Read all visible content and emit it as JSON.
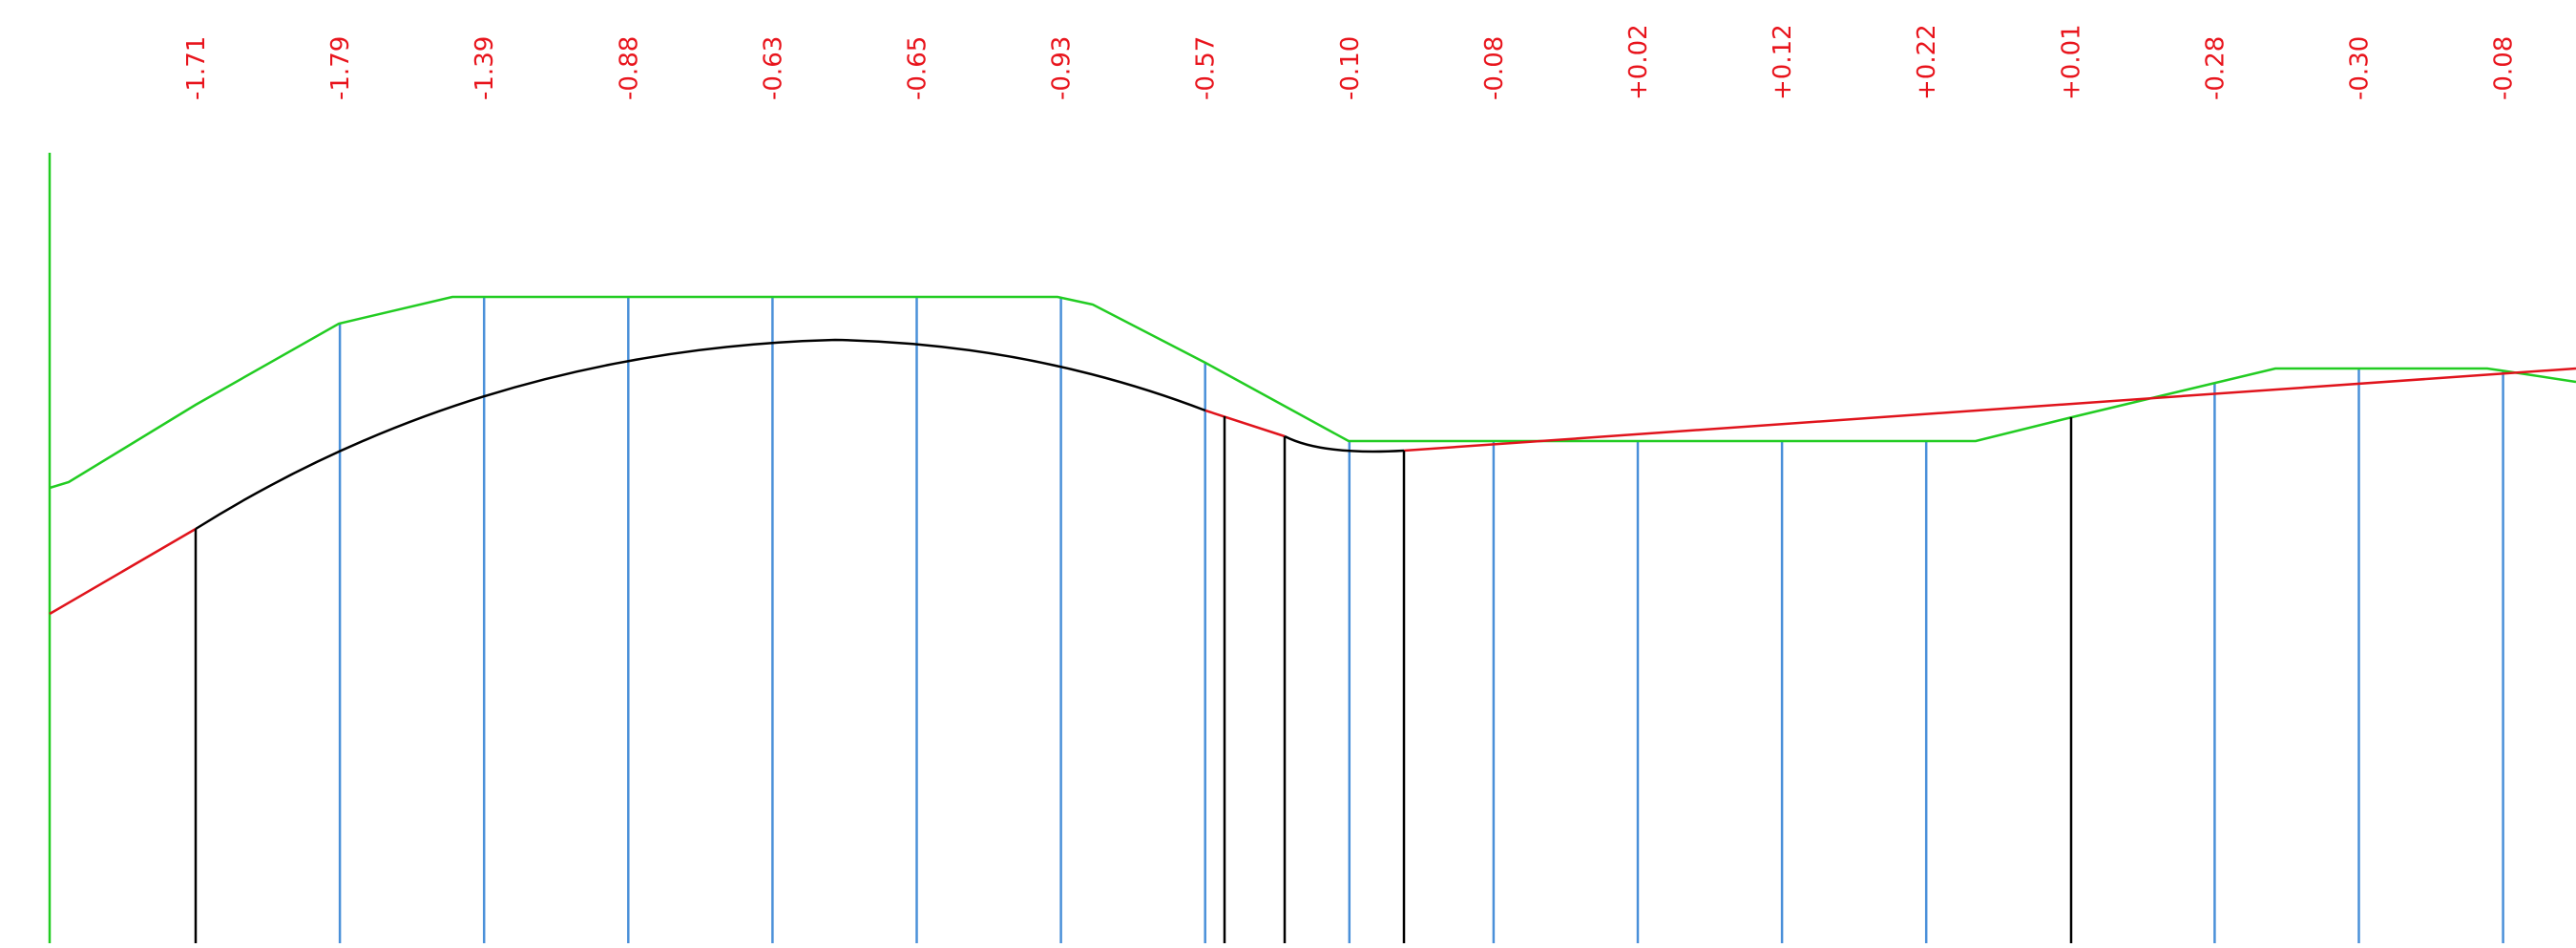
{
  "profile": {
    "stations": [
      {
        "label": "-1.71",
        "station_type": "regular"
      },
      {
        "label": "-1.79",
        "station_type": "regular"
      },
      {
        "label": "-1.39",
        "station_type": "regular"
      },
      {
        "label": "-0.88",
        "station_type": "regular"
      },
      {
        "label": "-0.63",
        "station_type": "regular"
      },
      {
        "label": "-0.65",
        "station_type": "regular"
      },
      {
        "label": "-0.93",
        "station_type": "regular"
      },
      {
        "label": "-0.57",
        "station_type": "regular"
      },
      {
        "label": "-0.10",
        "station_type": "regular"
      },
      {
        "label": "-0.08",
        "station_type": "regular"
      },
      {
        "label": "+0.02",
        "station_type": "regular"
      },
      {
        "label": "+0.12",
        "station_type": "regular"
      },
      {
        "label": "+0.22",
        "station_type": "regular"
      },
      {
        "label": "+0.01",
        "station_type": "regular"
      },
      {
        "label": "-0.28",
        "station_type": "regular"
      },
      {
        "label": "-0.30",
        "station_type": "regular"
      },
      {
        "label": "-0.08",
        "station_type": "regular"
      }
    ],
    "colors": {
      "labels": "#e8141c",
      "ground_line": "#22cc22",
      "design_tangent": "#e0141c",
      "design_curve": "#000000",
      "station_line": "#4a90d9",
      "key_line": "#000000"
    }
  }
}
